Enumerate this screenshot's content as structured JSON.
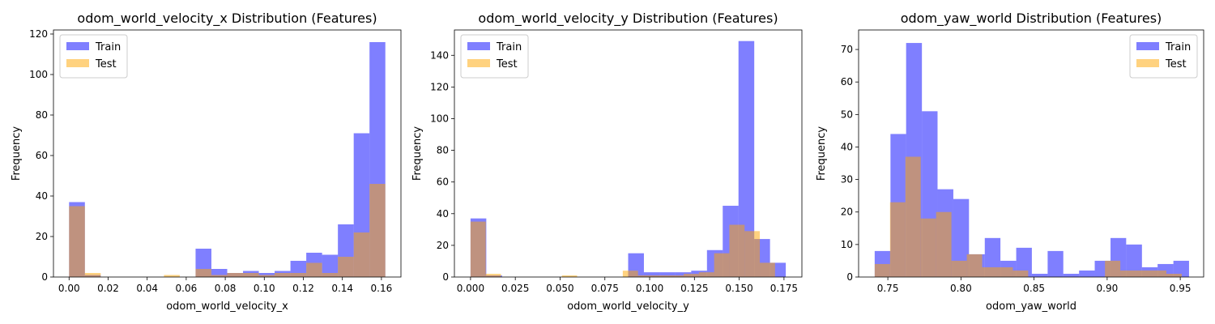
{
  "colors": {
    "train": "#0000ff",
    "test": "#ffa500",
    "train_opacity": 0.5,
    "test_opacity": 0.5
  },
  "chart_data": [
    {
      "type": "bar",
      "title": "odom_world_velocity_x Distribution (Features)",
      "xlabel": "odom_world_velocity_x",
      "ylabel": "Frequency",
      "xlim": [
        -0.008,
        0.17
      ],
      "ylim": [
        0,
        122
      ],
      "xticks": [
        0.0,
        0.02,
        0.04,
        0.06,
        0.08,
        0.1,
        0.12,
        0.14,
        0.16
      ],
      "xtick_labels": [
        "0.00",
        "0.02",
        "0.04",
        "0.06",
        "0.08",
        "0.10",
        "0.12",
        "0.14",
        "0.16"
      ],
      "yticks": [
        0,
        20,
        40,
        60,
        80,
        100,
        120
      ],
      "ytick_labels": [
        "0",
        "20",
        "40",
        "60",
        "80",
        "100",
        "120"
      ],
      "legend": {
        "position": "upper-left",
        "entries": [
          "Train",
          "Test"
        ]
      },
      "series": [
        {
          "name": "Train",
          "bin_edges": [
            0.0,
            0.0081,
            0.0162,
            0.0243,
            0.0324,
            0.0405,
            0.0486,
            0.0567,
            0.0648,
            0.0729,
            0.081,
            0.0891,
            0.0972,
            0.1053,
            0.1134,
            0.1215,
            0.1296,
            0.1377,
            0.1458,
            0.1539,
            0.162
          ],
          "values": [
            37,
            1,
            0,
            0,
            0,
            0,
            0,
            0,
            14,
            4,
            2,
            3,
            2,
            3,
            8,
            12,
            11,
            26,
            71,
            116
          ]
        },
        {
          "name": "Test",
          "bin_edges": [
            0.0,
            0.0081,
            0.0162,
            0.0243,
            0.0324,
            0.0405,
            0.0486,
            0.0567,
            0.0648,
            0.0729,
            0.081,
            0.0891,
            0.0972,
            0.1053,
            0.1134,
            0.1215,
            0.1296,
            0.1377,
            0.1458,
            0.1539,
            0.162
          ],
          "values": [
            35,
            2,
            0,
            0,
            0,
            0,
            1,
            0,
            4,
            1,
            2,
            2,
            1,
            2,
            2,
            7,
            2,
            10,
            22,
            46
          ]
        }
      ]
    },
    {
      "type": "bar",
      "title": "odom_world_velocity_y Distribution (Features)",
      "xlabel": "odom_world_velocity_y",
      "ylabel": "Frequency",
      "xlim": [
        -0.009,
        0.185
      ],
      "ylim": [
        0,
        156
      ],
      "xticks": [
        0.0,
        0.025,
        0.05,
        0.075,
        0.1,
        0.125,
        0.15,
        0.175
      ],
      "xtick_labels": [
        "0.000",
        "0.025",
        "0.050",
        "0.075",
        "0.100",
        "0.125",
        "0.150",
        "0.175"
      ],
      "yticks": [
        0,
        20,
        40,
        60,
        80,
        100,
        120,
        140
      ],
      "ytick_labels": [
        "0",
        "20",
        "40",
        "60",
        "80",
        "100",
        "120",
        "140"
      ],
      "legend": {
        "position": "upper-left",
        "entries": [
          "Train",
          "Test"
        ]
      },
      "series": [
        {
          "name": "Train",
          "bin_edges": [
            0.0,
            0.0088,
            0.0176,
            0.0264,
            0.0352,
            0.044,
            0.0528,
            0.0616,
            0.0704,
            0.0792,
            0.088,
            0.0968,
            0.1056,
            0.1144,
            0.1232,
            0.132,
            0.1408,
            0.1496,
            0.1584,
            0.1672,
            0.176
          ],
          "values": [
            37,
            1,
            0,
            0,
            0,
            0,
            0,
            0,
            0,
            0,
            15,
            3,
            3,
            3,
            4,
            17,
            45,
            149,
            24,
            9
          ]
        },
        {
          "name": "Test",
          "bin_edges": [
            0.0,
            0.0085,
            0.017,
            0.0255,
            0.034,
            0.0425,
            0.051,
            0.0595,
            0.068,
            0.0765,
            0.085,
            0.0935,
            0.102,
            0.1105,
            0.119,
            0.1275,
            0.136,
            0.1445,
            0.153,
            0.1615,
            0.17
          ],
          "values": [
            35,
            2,
            0,
            0,
            0,
            0,
            1,
            0,
            0,
            0,
            4,
            1,
            1,
            1,
            2,
            3,
            15,
            33,
            29,
            9
          ]
        }
      ]
    },
    {
      "type": "bar",
      "title": "odom_yaw_world Distribution (Features)",
      "xlabel": "odom_yaw_world",
      "ylabel": "Frequency",
      "xlim": [
        0.73,
        0.966
      ],
      "ylim": [
        0,
        76
      ],
      "xticks": [
        0.75,
        0.8,
        0.85,
        0.9,
        0.95
      ],
      "xtick_labels": [
        "0.75",
        "0.80",
        "0.85",
        "0.90",
        "0.95"
      ],
      "yticks": [
        0,
        10,
        20,
        30,
        40,
        50,
        60,
        70
      ],
      "ytick_labels": [
        "0",
        "10",
        "20",
        "30",
        "40",
        "50",
        "60",
        "70"
      ],
      "legend": {
        "position": "upper-right",
        "entries": [
          "Train",
          "Test"
        ]
      },
      "series": [
        {
          "name": "Train",
          "bin_edges": [
            0.741,
            0.7518,
            0.7625,
            0.7733,
            0.784,
            0.7948,
            0.8055,
            0.8163,
            0.827,
            0.8378,
            0.8485,
            0.8593,
            0.87,
            0.8808,
            0.8915,
            0.9023,
            0.913,
            0.9238,
            0.9345,
            0.9453,
            0.956
          ],
          "values": [
            8,
            44,
            72,
            51,
            27,
            24,
            7,
            12,
            5,
            9,
            1,
            8,
            1,
            2,
            5,
            12,
            10,
            3,
            4,
            5
          ]
        },
        {
          "name": "Test",
          "bin_edges": [
            0.741,
            0.7515,
            0.762,
            0.7725,
            0.783,
            0.7935,
            0.804,
            0.8145,
            0.825,
            0.8355,
            0.846,
            0.8565,
            0.867,
            0.8775,
            0.888,
            0.8985,
            0.909,
            0.9195,
            0.93,
            0.9405,
            0.951
          ],
          "values": [
            4,
            23,
            37,
            18,
            20,
            5,
            7,
            3,
            3,
            2,
            0,
            0,
            0,
            0,
            0,
            5,
            2,
            2,
            2,
            1
          ]
        }
      ]
    }
  ]
}
